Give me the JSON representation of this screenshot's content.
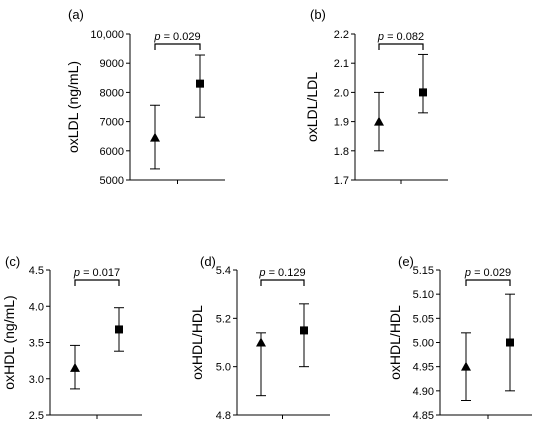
{
  "chart_data": [
    {
      "type": "scatter",
      "panel": "(a)",
      "ylabel": "oxLDL (ng/mL)",
      "ylim": [
        5000,
        10000
      ],
      "yticks": [
        "5000",
        "6000",
        "7000",
        "8000",
        "9000",
        "10,000"
      ],
      "ytick_values": [
        5000,
        6000,
        7000,
        8000,
        9000,
        10000
      ],
      "p_value": "= 0.029",
      "series": [
        {
          "marker": "triangle",
          "y": 6450,
          "lower": 5380,
          "upper": 7560
        },
        {
          "marker": "square",
          "y": 8300,
          "lower": 7150,
          "upper": 9280
        }
      ]
    },
    {
      "type": "scatter",
      "panel": "(b)",
      "ylabel": "oxLDL/LDL",
      "ylim": [
        1.7,
        2.2
      ],
      "yticks": [
        "1.7",
        "1.8",
        "1.9",
        "2.0",
        "2.1",
        "2.2"
      ],
      "ytick_values": [
        1.7,
        1.8,
        1.9,
        2.0,
        2.1,
        2.2
      ],
      "p_value": "= 0.082",
      "series": [
        {
          "marker": "triangle",
          "y": 1.9,
          "lower": 1.8,
          "upper": 2.0
        },
        {
          "marker": "square",
          "y": 2.0,
          "lower": 1.93,
          "upper": 2.13
        }
      ]
    },
    {
      "type": "scatter",
      "panel": "(c)",
      "ylabel": "oxHDL (ng/mL)",
      "ylim": [
        2.5,
        4.5
      ],
      "yticks": [
        "2.5",
        "3.0",
        "3.5",
        "4.0",
        "4.5"
      ],
      "ytick_values": [
        2.5,
        3.0,
        3.5,
        4.0,
        4.5
      ],
      "p_value": "= 0.017",
      "series": [
        {
          "marker": "triangle",
          "y": 3.15,
          "lower": 2.86,
          "upper": 3.46
        },
        {
          "marker": "square",
          "y": 3.68,
          "lower": 3.38,
          "upper": 3.98
        }
      ]
    },
    {
      "type": "scatter",
      "panel": "(d)",
      "ylabel": "oxHDL/HDL",
      "ylim": [
        4.8,
        5.4
      ],
      "yticks": [
        "4.8",
        "5.0",
        "5.2",
        "5.4"
      ],
      "ytick_values": [
        4.8,
        5.0,
        5.2,
        5.4
      ],
      "p_value": "= 0.129",
      "series": [
        {
          "marker": "triangle",
          "y": 5.1,
          "lower": 4.88,
          "upper": 5.14
        },
        {
          "marker": "square",
          "y": 5.15,
          "lower": 5.0,
          "upper": 5.26
        }
      ]
    },
    {
      "type": "scatter",
      "panel": "(e)",
      "ylabel": "oxHDL/HDL",
      "ylim": [
        4.85,
        5.15
      ],
      "yticks": [
        "4.85",
        "4.90",
        "4.95",
        "5.00",
        "5.05",
        "5.10",
        "5.15"
      ],
      "ytick_values": [
        4.85,
        4.9,
        4.95,
        5.0,
        5.05,
        5.1,
        5.15
      ],
      "p_value": "= 0.029",
      "series": [
        {
          "marker": "triangle",
          "y": 4.95,
          "lower": 4.88,
          "upper": 5.02
        },
        {
          "marker": "square",
          "y": 5.0,
          "lower": 4.9,
          "upper": 5.1
        }
      ]
    }
  ]
}
